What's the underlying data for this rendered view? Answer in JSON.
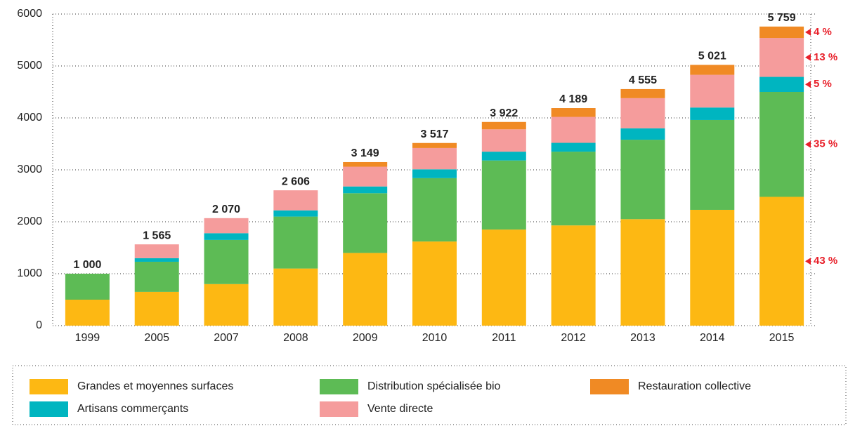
{
  "chart_data": {
    "type": "stacked_bar",
    "categories": [
      "1999",
      "2005",
      "2007",
      "2008",
      "2009",
      "2010",
      "2011",
      "2012",
      "2013",
      "2014",
      "2015"
    ],
    "series": [
      {
        "name": "Grandes et moyennes surfaces",
        "color": "#fdb813",
        "values": [
          500,
          650,
          800,
          1100,
          1400,
          1620,
          1850,
          1930,
          2050,
          2230,
          2480
        ]
      },
      {
        "name": "Distribution spécialisée bio",
        "color": "#5dbb55",
        "values": [
          500,
          580,
          850,
          1000,
          1150,
          1220,
          1330,
          1420,
          1530,
          1730,
          2020
        ]
      },
      {
        "name": "Artisans commerçants",
        "color": "#00b5c0",
        "values": [
          0,
          70,
          130,
          120,
          130,
          170,
          170,
          170,
          220,
          240,
          290
        ]
      },
      {
        "name": "Vente directe",
        "color": "#f59c9c",
        "values": [
          0,
          265,
          290,
          386,
          380,
          410,
          430,
          500,
          580,
          630,
          750
        ]
      },
      {
        "name": "Restauration collective",
        "color": "#f08a24",
        "values": [
          0,
          0,
          0,
          0,
          89,
          97,
          142,
          169,
          175,
          191,
          219
        ]
      }
    ],
    "totals": [
      1000,
      1565,
      2070,
      2606,
      3149,
      3517,
      3922,
      4189,
      4555,
      5021,
      5759
    ],
    "total_labels": [
      "1 000",
      "1 565",
      "2 070",
      "2 606",
      "3 149",
      "3 517",
      "3 922",
      "4 189",
      "4 555",
      "5 021",
      "5 759"
    ],
    "share_labels": [
      "43 %",
      "35 %",
      "5 %",
      "13 %",
      "4 %"
    ],
    "ylim": [
      0,
      6000
    ],
    "yticks": [
      0,
      1000,
      2000,
      3000,
      4000,
      5000,
      6000
    ],
    "grid": true,
    "legend_order": [
      0,
      1,
      4,
      2,
      3
    ]
  }
}
